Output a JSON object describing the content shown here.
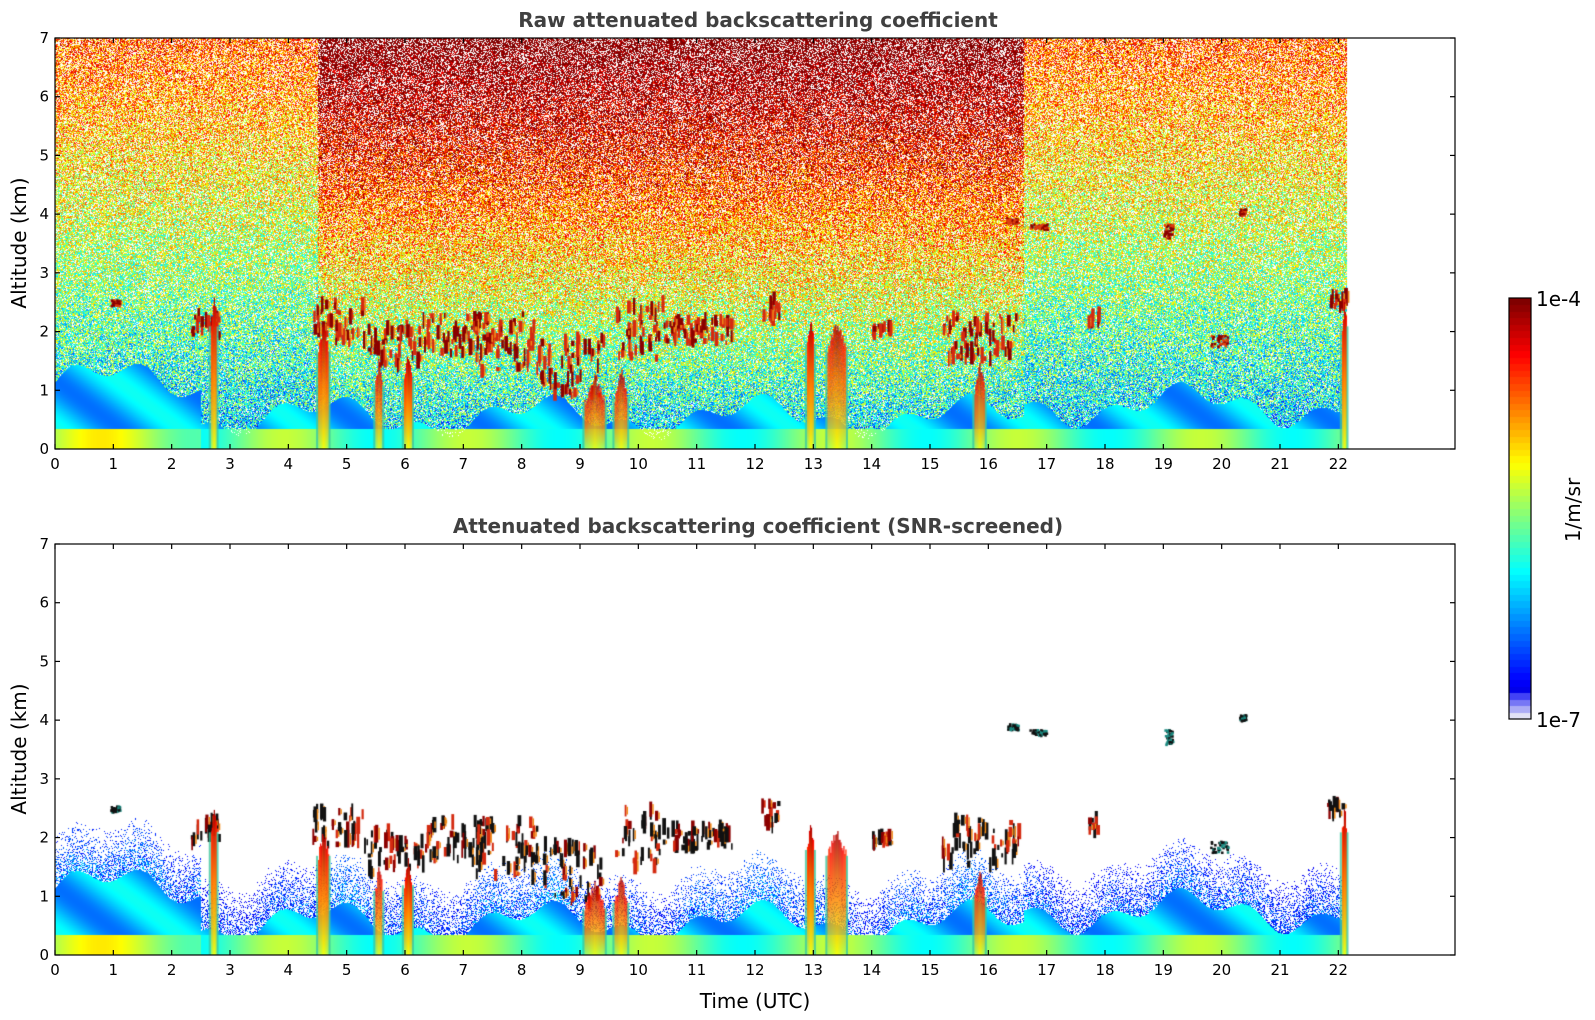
{
  "chart_data": [
    {
      "type": "heatmap",
      "title": "Raw attenuated backscattering coefficient",
      "xlabel": "",
      "ylabel": "Altitude (km)",
      "xlim": [
        0,
        24
      ],
      "ylim": [
        0,
        7
      ],
      "x_ticks": [
        0,
        1,
        2,
        3,
        4,
        5,
        6,
        7,
        8,
        9,
        10,
        11,
        12,
        13,
        14,
        15,
        16,
        17,
        18,
        19,
        20,
        21,
        22
      ],
      "y_ticks": [
        0,
        1,
        2,
        3,
        4,
        5,
        6,
        7
      ],
      "data_end_time": 22.15,
      "screened": false
    },
    {
      "type": "heatmap",
      "title": "Attenuated backscattering coefficient (SNR-screened)",
      "xlabel": "Time (UTC)",
      "ylabel": "Altitude (km)",
      "xlim": [
        0,
        24
      ],
      "ylim": [
        0,
        7
      ],
      "x_ticks": [
        0,
        1,
        2,
        3,
        4,
        5,
        6,
        7,
        8,
        9,
        10,
        11,
        12,
        13,
        14,
        15,
        16,
        17,
        18,
        19,
        20,
        21,
        22
      ],
      "y_ticks": [
        0,
        1,
        2,
        3,
        4,
        5,
        6,
        7
      ],
      "data_end_time": 22.15,
      "screened": true
    }
  ],
  "colorbar": {
    "label": "1/m/sr",
    "max_label": "1e-4",
    "min_label": "1e-7",
    "scale": "log",
    "colormap": "jet"
  },
  "features": {
    "precip_shafts": [
      {
        "t": 2.72,
        "w": 0.1,
        "top": 2.6
      },
      {
        "t": 4.6,
        "w": 0.18,
        "top": 2.2
      },
      {
        "t": 5.55,
        "w": 0.12,
        "top": 1.6
      },
      {
        "t": 6.05,
        "w": 0.14,
        "top": 1.7
      },
      {
        "t": 9.25,
        "w": 0.35,
        "top": 1.3
      },
      {
        "t": 9.7,
        "w": 0.22,
        "top": 1.4
      },
      {
        "t": 12.95,
        "w": 0.12,
        "top": 2.3
      },
      {
        "t": 13.4,
        "w": 0.32,
        "top": 2.2
      },
      {
        "t": 15.85,
        "w": 0.18,
        "top": 1.5
      },
      {
        "t": 22.1,
        "w": 0.08,
        "top": 2.6
      }
    ],
    "cloud_layer_ranges": [
      [
        2.3,
        2.8,
        1.9,
        2.3
      ],
      [
        4.4,
        5.3,
        1.8,
        2.5
      ],
      [
        5.3,
        6.3,
        1.4,
        2.1
      ],
      [
        6.3,
        7.5,
        1.6,
        2.3
      ],
      [
        7.2,
        8.3,
        1.3,
        2.3
      ],
      [
        8.3,
        9.4,
        0.9,
        1.9
      ],
      [
        9.6,
        10.4,
        1.5,
        2.5
      ],
      [
        10.4,
        11.6,
        1.8,
        2.2
      ],
      [
        12.1,
        12.4,
        2.2,
        2.6
      ],
      [
        14.0,
        14.3,
        1.9,
        2.1
      ],
      [
        15.2,
        16.5,
        1.5,
        2.3
      ],
      [
        17.7,
        17.9,
        2.1,
        2.3
      ],
      [
        21.8,
        22.1,
        2.4,
        2.6
      ]
    ],
    "high_cloud_patches": [
      [
        16.7,
        17.0,
        3.75,
        3.85
      ],
      [
        19.0,
        19.15,
        3.6,
        3.85
      ],
      [
        20.3,
        20.4,
        4.0,
        4.1
      ],
      [
        16.3,
        16.5,
        3.85,
        3.95
      ],
      [
        19.8,
        20.1,
        1.75,
        1.95
      ],
      [
        0.95,
        1.1,
        2.45,
        2.55
      ]
    ],
    "noisy_periods": [
      [
        4.5,
        16.6
      ]
    ]
  }
}
